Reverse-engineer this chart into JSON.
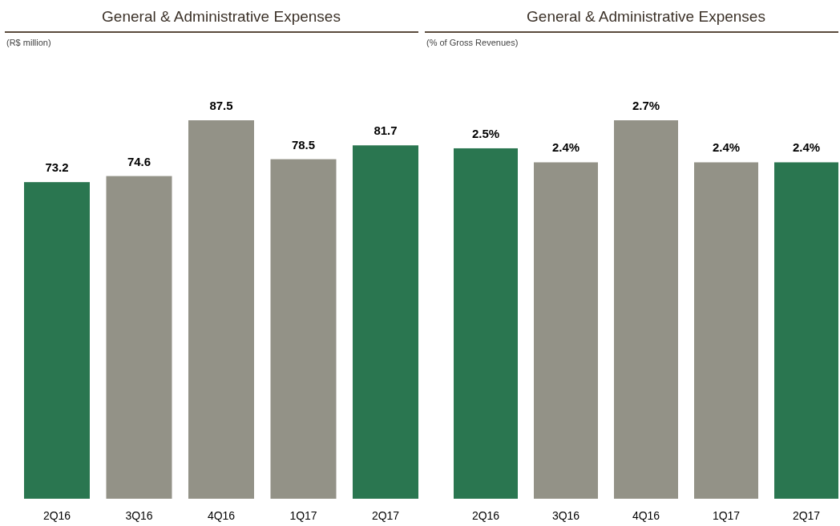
{
  "chart_data": [
    {
      "type": "bar",
      "title": "General & Administrative Expenses",
      "subtitle": "(R$ million)",
      "categories": [
        "2Q16",
        "3Q16",
        "4Q16",
        "1Q17",
        "2Q17"
      ],
      "values": [
        73.2,
        74.6,
        87.5,
        78.5,
        81.7
      ],
      "colors": [
        "#2a7650",
        "#939287",
        "#939287",
        "#939287",
        "#2a7650"
      ],
      "tick_labels": "x",
      "data_labels": true
    },
    {
      "type": "bar",
      "title": "General & Administrative Expenses",
      "subtitle": "(% of Gross Revenues)",
      "categories": [
        "2Q16",
        "3Q16",
        "4Q16",
        "1Q17",
        "2Q17"
      ],
      "values": [
        2.5,
        2.4,
        2.7,
        2.4,
        2.4
      ],
      "value_labels": [
        "2.5%",
        "2.4%",
        "2.7%",
        "2.4%",
        "2.4%"
      ],
      "colors": [
        "#2a7650",
        "#939287",
        "#939287",
        "#939287",
        "#2a7650"
      ],
      "tick_labels": "x"
    }
  ]
}
